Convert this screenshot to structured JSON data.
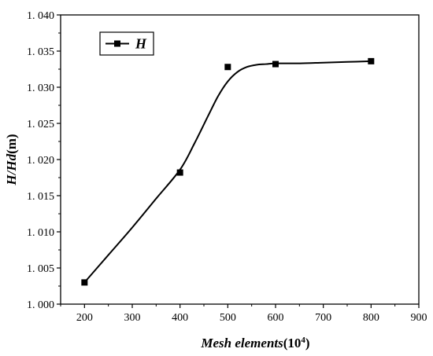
{
  "chart_data": {
    "type": "line",
    "xlabel_italic": "Mesh elements",
    "xlabel_unit": "(10",
    "xlabel_sup": "4",
    "xlabel_close": ")",
    "ylabel_italic": "H/Hd",
    "ylabel_unit": "(m)",
    "xlim": [
      150,
      900
    ],
    "ylim": [
      1.0,
      1.04
    ],
    "x_ticks": [
      200,
      300,
      400,
      500,
      600,
      700,
      800,
      900
    ],
    "x_tick_labels": [
      "200",
      "300",
      "400",
      "500",
      "600",
      "700",
      "800",
      "900"
    ],
    "y_ticks": [
      1.0,
      1.005,
      1.01,
      1.015,
      1.02,
      1.025,
      1.03,
      1.035,
      1.04
    ],
    "y_tick_labels": [
      "1. 000",
      "1. 005",
      "1. 010",
      "1. 015",
      "1. 020",
      "1. 025",
      "1. 030",
      "1. 035",
      "1. 040"
    ],
    "grid": false,
    "legend_position": "top-left",
    "series": [
      {
        "name": "H",
        "x": [
          200,
          400,
          500,
          600,
          800
        ],
        "y": [
          1.003,
          1.0182,
          1.0328,
          1.0332,
          1.0336
        ],
        "fit_curve": {
          "x": [
            200,
            250,
            300,
            350,
            400,
            430,
            460,
            480,
            500,
            520,
            540,
            560,
            580,
            600,
            650,
            700,
            750,
            800
          ],
          "y": [
            1.003,
            1.0068,
            1.0106,
            1.0146,
            1.0186,
            1.0222,
            1.0262,
            1.0288,
            1.0308,
            1.0321,
            1.0328,
            1.0331,
            1.0332,
            1.0333,
            1.0333,
            1.0334,
            1.0335,
            1.0336
          ]
        }
      }
    ],
    "colors": {
      "line": "#000000",
      "marker": "#000000",
      "axis": "#000000"
    }
  }
}
